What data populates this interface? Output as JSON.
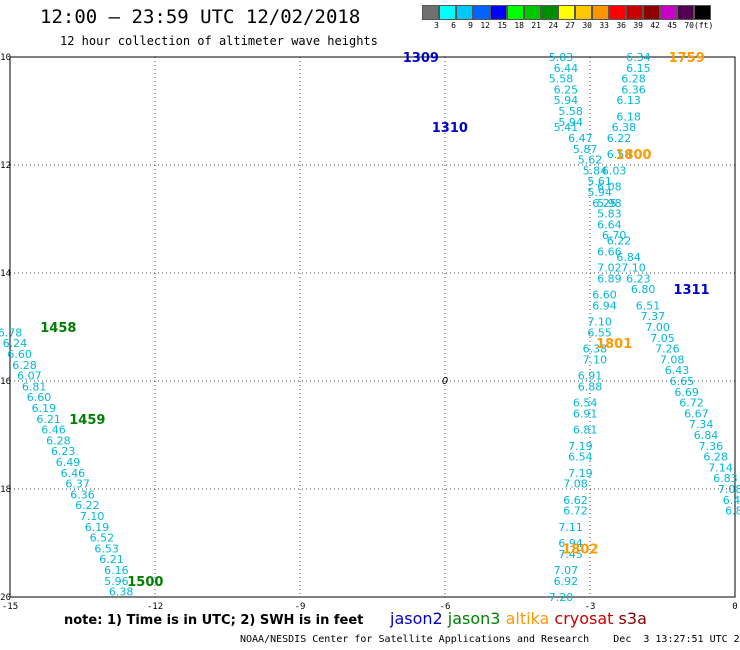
{
  "header": {
    "title": "12:00 – 23:59 UTC 12/02/2018",
    "subtitle": "12 hour collection of altimeter wave heights"
  },
  "legend": {
    "colors": [
      "#707070",
      "#00ffff",
      "#00c8ff",
      "#0064ff",
      "#0000ff",
      "#00ff00",
      "#00c800",
      "#008c00",
      "#ffff00",
      "#ffc800",
      "#ff9600",
      "#ff0000",
      "#c80000",
      "#8c0000",
      "#c800c8",
      "#500050",
      "#000000"
    ],
    "ticks": [
      "3",
      "6",
      "9",
      "12",
      "15",
      "18",
      "21",
      "24",
      "27",
      "30",
      "33",
      "36",
      "39",
      "42",
      "45",
      "70",
      "(ft)"
    ]
  },
  "note": "note: 1) Time is in UTC; 2) SWH is in feet",
  "satellites": [
    {
      "name": "jason2",
      "color": "#0000cc"
    },
    {
      "name": "jason3",
      "color": "#008000"
    },
    {
      "name": "altika",
      "color": "#ff9900"
    },
    {
      "name": "cryosat",
      "color": "#cc0000"
    },
    {
      "name": "s3a",
      "color": "#800000"
    }
  ],
  "footer": "NOAA/NESDIS Center for Satellite Applications and Research    Dec  3 13:27:51 UTC 2018",
  "chart_data": {
    "type": "scatter",
    "title": "12:00 – 23:59 UTC 12/02/2018",
    "xlim": [
      -15,
      0
    ],
    "ylim": [
      -20,
      -10
    ],
    "grid": true,
    "x_ticks": [
      "-15",
      "-12",
      "-9",
      "-6",
      "-3",
      "0"
    ],
    "y_ticks": [
      "-10",
      "-12",
      "-14",
      "-16",
      "-18",
      "-20"
    ],
    "contour_label": "0",
    "time_labels": [
      {
        "x": -6.5,
        "y": -10.0,
        "text": "1309",
        "sat": "jason2"
      },
      {
        "x": -5.9,
        "y": -11.3,
        "text": "1310",
        "sat": "jason2"
      },
      {
        "x": -0.9,
        "y": -14.3,
        "text": "1311",
        "sat": "jason2"
      },
      {
        "x": -1.0,
        "y": -10.0,
        "text": "1759",
        "sat": "altika"
      },
      {
        "x": -2.1,
        "y": -11.8,
        "text": "1800",
        "sat": "altika"
      },
      {
        "x": -2.5,
        "y": -15.3,
        "text": "1801",
        "sat": "altika"
      },
      {
        "x": -3.2,
        "y": -19.1,
        "text": "1802",
        "sat": "altika"
      },
      {
        "x": -14.0,
        "y": -15.0,
        "text": "1458",
        "sat": "jason3"
      },
      {
        "x": -13.4,
        "y": -16.7,
        "text": "1459",
        "sat": "jason3"
      },
      {
        "x": -12.2,
        "y": -19.7,
        "text": "1500",
        "sat": "jason3"
      }
    ],
    "series": [
      {
        "sat": "altika",
        "points": [
          {
            "x": -3.6,
            "y": -10.0,
            "v": "5.83"
          },
          {
            "x": -3.5,
            "y": -10.2,
            "v": "6.44"
          },
          {
            "x": -3.6,
            "y": -10.4,
            "v": "5.58"
          },
          {
            "x": -3.5,
            "y": -10.6,
            "v": "6.25"
          },
          {
            "x": -3.5,
            "y": -10.8,
            "v": "5.94"
          },
          {
            "x": -3.4,
            "y": -11.0,
            "v": "5.58"
          },
          {
            "x": -3.4,
            "y": -11.2,
            "v": "5.94"
          },
          {
            "x": -3.5,
            "y": -11.3,
            "v": "5.41"
          },
          {
            "x": -3.2,
            "y": -11.5,
            "v": "6.47"
          },
          {
            "x": -3.1,
            "y": -11.7,
            "v": "5.87"
          },
          {
            "x": -3.0,
            "y": -11.9,
            "v": "5.62"
          },
          {
            "x": -2.9,
            "y": -12.1,
            "v": "5.84"
          },
          {
            "x": -2.8,
            "y": -12.3,
            "v": "5.61"
          },
          {
            "x": -2.8,
            "y": -12.5,
            "v": "5.94"
          },
          {
            "x": -2.7,
            "y": -12.7,
            "v": "6.25"
          },
          {
            "x": -2.6,
            "y": -12.9,
            "v": "5.83"
          },
          {
            "x": -2.6,
            "y": -13.1,
            "v": "6.64"
          },
          {
            "x": -2.5,
            "y": -13.3,
            "v": "6.70"
          },
          {
            "x": -2.6,
            "y": -13.6,
            "v": "6.66"
          },
          {
            "x": -2.6,
            "y": -13.9,
            "v": "7.02"
          },
          {
            "x": -2.6,
            "y": -14.1,
            "v": "6.89"
          },
          {
            "x": -2.7,
            "y": -14.4,
            "v": "6.60"
          },
          {
            "x": -2.7,
            "y": -14.6,
            "v": "6.94"
          },
          {
            "x": -2.8,
            "y": -14.9,
            "v": "7.10"
          },
          {
            "x": -2.8,
            "y": -15.1,
            "v": "6.55"
          },
          {
            "x": -2.9,
            "y": -15.4,
            "v": "6.38"
          },
          {
            "x": -2.9,
            "y": -15.6,
            "v": "7.10"
          },
          {
            "x": -3.0,
            "y": -15.9,
            "v": "6.91"
          },
          {
            "x": -3.0,
            "y": -16.1,
            "v": "6.88"
          },
          {
            "x": -3.1,
            "y": -16.4,
            "v": "6.54"
          },
          {
            "x": -3.1,
            "y": -16.6,
            "v": "6.91"
          },
          {
            "x": -3.1,
            "y": -16.9,
            "v": "6.81"
          },
          {
            "x": -3.2,
            "y": -17.2,
            "v": "7.19"
          },
          {
            "x": -3.2,
            "y": -17.4,
            "v": "6.54"
          },
          {
            "x": -3.2,
            "y": -17.7,
            "v": "7.19"
          },
          {
            "x": -3.3,
            "y": -17.9,
            "v": "7.08"
          },
          {
            "x": -3.3,
            "y": -18.2,
            "v": "6.62"
          },
          {
            "x": -3.3,
            "y": -18.4,
            "v": "6.72"
          },
          {
            "x": -3.4,
            "y": -18.7,
            "v": "7.11"
          },
          {
            "x": -3.4,
            "y": -19.0,
            "v": "6.94"
          },
          {
            "x": -3.4,
            "y": -19.2,
            "v": "7.45"
          },
          {
            "x": -3.5,
            "y": -19.5,
            "v": "7.07"
          },
          {
            "x": -3.5,
            "y": -19.7,
            "v": "6.92"
          },
          {
            "x": -3.6,
            "y": -20.0,
            "v": "7.20"
          }
        ]
      },
      {
        "sat": "jason2",
        "points": [
          {
            "x": -2.0,
            "y": -10.0,
            "v": "6.34"
          },
          {
            "x": -2.0,
            "y": -10.2,
            "v": "6.15"
          },
          {
            "x": -2.1,
            "y": -10.4,
            "v": "6.28"
          },
          {
            "x": -2.1,
            "y": -10.6,
            "v": "6.36"
          },
          {
            "x": -2.2,
            "y": -10.8,
            "v": "6.13"
          },
          {
            "x": -2.2,
            "y": -11.1,
            "v": "6.18"
          },
          {
            "x": -2.3,
            "y": -11.3,
            "v": "6.38"
          },
          {
            "x": -2.4,
            "y": -11.5,
            "v": "6.22"
          },
          {
            "x": -2.4,
            "y": -11.8,
            "v": "6.58"
          },
          {
            "x": -2.5,
            "y": -12.1,
            "v": "6.03"
          },
          {
            "x": -2.6,
            "y": -12.4,
            "v": "6.08"
          },
          {
            "x": -2.6,
            "y": -12.7,
            "v": "5.98"
          },
          {
            "x": -2.4,
            "y": -13.4,
            "v": "6.22"
          },
          {
            "x": -2.2,
            "y": -13.7,
            "v": "6.84"
          },
          {
            "x": -2.1,
            "y": -13.9,
            "v": "7.10"
          },
          {
            "x": -2.0,
            "y": -14.1,
            "v": "6.23"
          },
          {
            "x": -1.9,
            "y": -14.3,
            "v": "6.80"
          },
          {
            "x": -1.8,
            "y": -14.6,
            "v": "6.51"
          },
          {
            "x": -1.7,
            "y": -14.8,
            "v": "7.37"
          },
          {
            "x": -1.6,
            "y": -15.0,
            "v": "7.00"
          },
          {
            "x": -1.5,
            "y": -15.2,
            "v": "7.05"
          },
          {
            "x": -1.4,
            "y": -15.4,
            "v": "7.26"
          },
          {
            "x": -1.3,
            "y": -15.6,
            "v": "7.08"
          },
          {
            "x": -1.2,
            "y": -15.8,
            "v": "6.43"
          },
          {
            "x": -1.1,
            "y": -16.0,
            "v": "6.65"
          },
          {
            "x": -1.0,
            "y": -16.2,
            "v": "6.69"
          },
          {
            "x": -0.9,
            "y": -16.4,
            "v": "6.72"
          },
          {
            "x": -0.8,
            "y": -16.6,
            "v": "6.67"
          },
          {
            "x": -0.7,
            "y": -16.8,
            "v": "7.34"
          },
          {
            "x": -0.6,
            "y": -17.0,
            "v": "6.84"
          },
          {
            "x": -0.5,
            "y": -17.2,
            "v": "7.36"
          },
          {
            "x": -0.4,
            "y": -17.4,
            "v": "6.28"
          },
          {
            "x": -0.3,
            "y": -17.6,
            "v": "7.14"
          },
          {
            "x": -0.2,
            "y": -17.8,
            "v": "6.83"
          },
          {
            "x": -0.1,
            "y": -18.0,
            "v": "7.08"
          },
          {
            "x": 0.0,
            "y": -18.2,
            "v": "6.42"
          },
          {
            "x": 0.05,
            "y": -18.4,
            "v": "6.81"
          }
        ]
      },
      {
        "sat": "jason3",
        "points": [
          {
            "x": -15.0,
            "y": -15.1,
            "v": "6.78"
          },
          {
            "x": -14.9,
            "y": -15.3,
            "v": "6.24"
          },
          {
            "x": -14.8,
            "y": -15.5,
            "v": "6.60"
          },
          {
            "x": -14.7,
            "y": -15.7,
            "v": "6.28"
          },
          {
            "x": -14.6,
            "y": -15.9,
            "v": "6.07"
          },
          {
            "x": -14.5,
            "y": -16.1,
            "v": "6.81"
          },
          {
            "x": -14.4,
            "y": -16.3,
            "v": "6.60"
          },
          {
            "x": -14.3,
            "y": -16.5,
            "v": "6.19"
          },
          {
            "x": -14.2,
            "y": -16.7,
            "v": "6.21"
          },
          {
            "x": -14.1,
            "y": -16.9,
            "v": "6.46"
          },
          {
            "x": -14.0,
            "y": -17.1,
            "v": "6.28"
          },
          {
            "x": -13.9,
            "y": -17.3,
            "v": "6.23"
          },
          {
            "x": -13.8,
            "y": -17.5,
            "v": "6.49"
          },
          {
            "x": -13.7,
            "y": -17.7,
            "v": "6.46"
          },
          {
            "x": -13.6,
            "y": -17.9,
            "v": "6.37"
          },
          {
            "x": -13.5,
            "y": -18.1,
            "v": "6.36"
          },
          {
            "x": -13.4,
            "y": -18.3,
            "v": "6.22"
          },
          {
            "x": -13.3,
            "y": -18.5,
            "v": "7.10"
          },
          {
            "x": -13.2,
            "y": -18.7,
            "v": "6.19"
          },
          {
            "x": -13.1,
            "y": -18.9,
            "v": "6.52"
          },
          {
            "x": -13.0,
            "y": -19.1,
            "v": "6.53"
          },
          {
            "x": -12.9,
            "y": -19.3,
            "v": "6.21"
          },
          {
            "x": -12.8,
            "y": -19.5,
            "v": "6.16"
          },
          {
            "x": -12.8,
            "y": -19.7,
            "v": "5.96"
          },
          {
            "x": -12.7,
            "y": -19.9,
            "v": "6.38"
          }
        ]
      }
    ]
  }
}
